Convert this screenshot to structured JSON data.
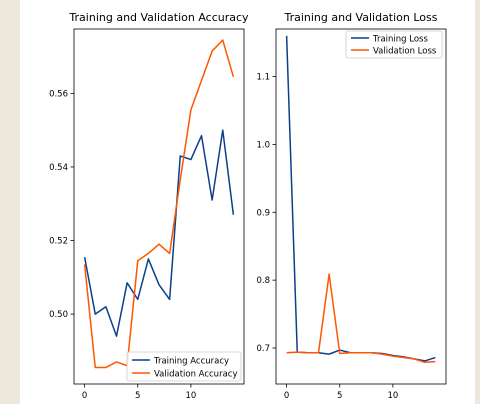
{
  "chart_data": [
    {
      "type": "line",
      "title": "Training and Validation Accuracy",
      "xlabel": "",
      "ylabel": "",
      "xlim": [
        -1,
        15
      ],
      "ylim": [
        0.481,
        0.5775
      ],
      "x": [
        0,
        1,
        2,
        3,
        4,
        5,
        6,
        7,
        8,
        9,
        10,
        11,
        12,
        13,
        14
      ],
      "xticks": [
        0,
        5,
        10
      ],
      "xtick_labels": [
        "0",
        "5",
        "10"
      ],
      "yticks": [
        0.5,
        0.52,
        0.54,
        0.56
      ],
      "ytick_labels": [
        "0.50",
        "0.52",
        "0.54",
        "0.56"
      ],
      "grid": false,
      "legend_position": "lower-right",
      "series": [
        {
          "name": "Training Accuracy",
          "color": "#0d3f8a",
          "values": [
            0.5155,
            0.5,
            0.502,
            0.494,
            0.5085,
            0.504,
            0.515,
            0.508,
            0.504,
            0.543,
            0.542,
            0.5485,
            0.531,
            0.55,
            0.527
          ]
        },
        {
          "name": "Validation Accuracy",
          "color": "#ff5500",
          "values": [
            0.5135,
            0.4855,
            0.4855,
            0.487,
            0.486,
            0.5145,
            0.5165,
            0.519,
            0.5165,
            0.5365,
            0.5555,
            0.5635,
            0.5715,
            0.5745,
            0.5645
          ]
        }
      ]
    },
    {
      "type": "line",
      "title": "Training and Validation Loss",
      "xlabel": "",
      "ylabel": "",
      "xlim": [
        -1,
        15
      ],
      "ylim": [
        0.647,
        1.17
      ],
      "x": [
        0,
        1,
        2,
        3,
        4,
        5,
        6,
        7,
        8,
        9,
        10,
        11,
        12,
        13,
        14
      ],
      "xticks": [
        0,
        5,
        10
      ],
      "xtick_labels": [
        "0",
        "5",
        "10"
      ],
      "yticks": [
        0.7,
        0.8,
        0.9,
        1.0,
        1.1
      ],
      "ytick_labels": [
        "0.7",
        "0.8",
        "0.9",
        "1.0",
        "1.1"
      ],
      "grid": false,
      "legend_position": "upper-right",
      "series": [
        {
          "name": "Training Loss",
          "color": "#0d3f8a",
          "values": [
            1.16,
            0.694,
            0.693,
            0.693,
            0.691,
            0.697,
            0.693,
            0.693,
            0.693,
            0.692,
            0.689,
            0.687,
            0.684,
            0.681,
            0.686
          ]
        },
        {
          "name": "Validation Loss",
          "color": "#ff5500",
          "values": [
            0.693,
            0.694,
            0.693,
            0.693,
            0.809,
            0.692,
            0.693,
            0.693,
            0.693,
            0.691,
            0.688,
            0.686,
            0.684,
            0.679,
            0.68
          ]
        }
      ]
    }
  ]
}
